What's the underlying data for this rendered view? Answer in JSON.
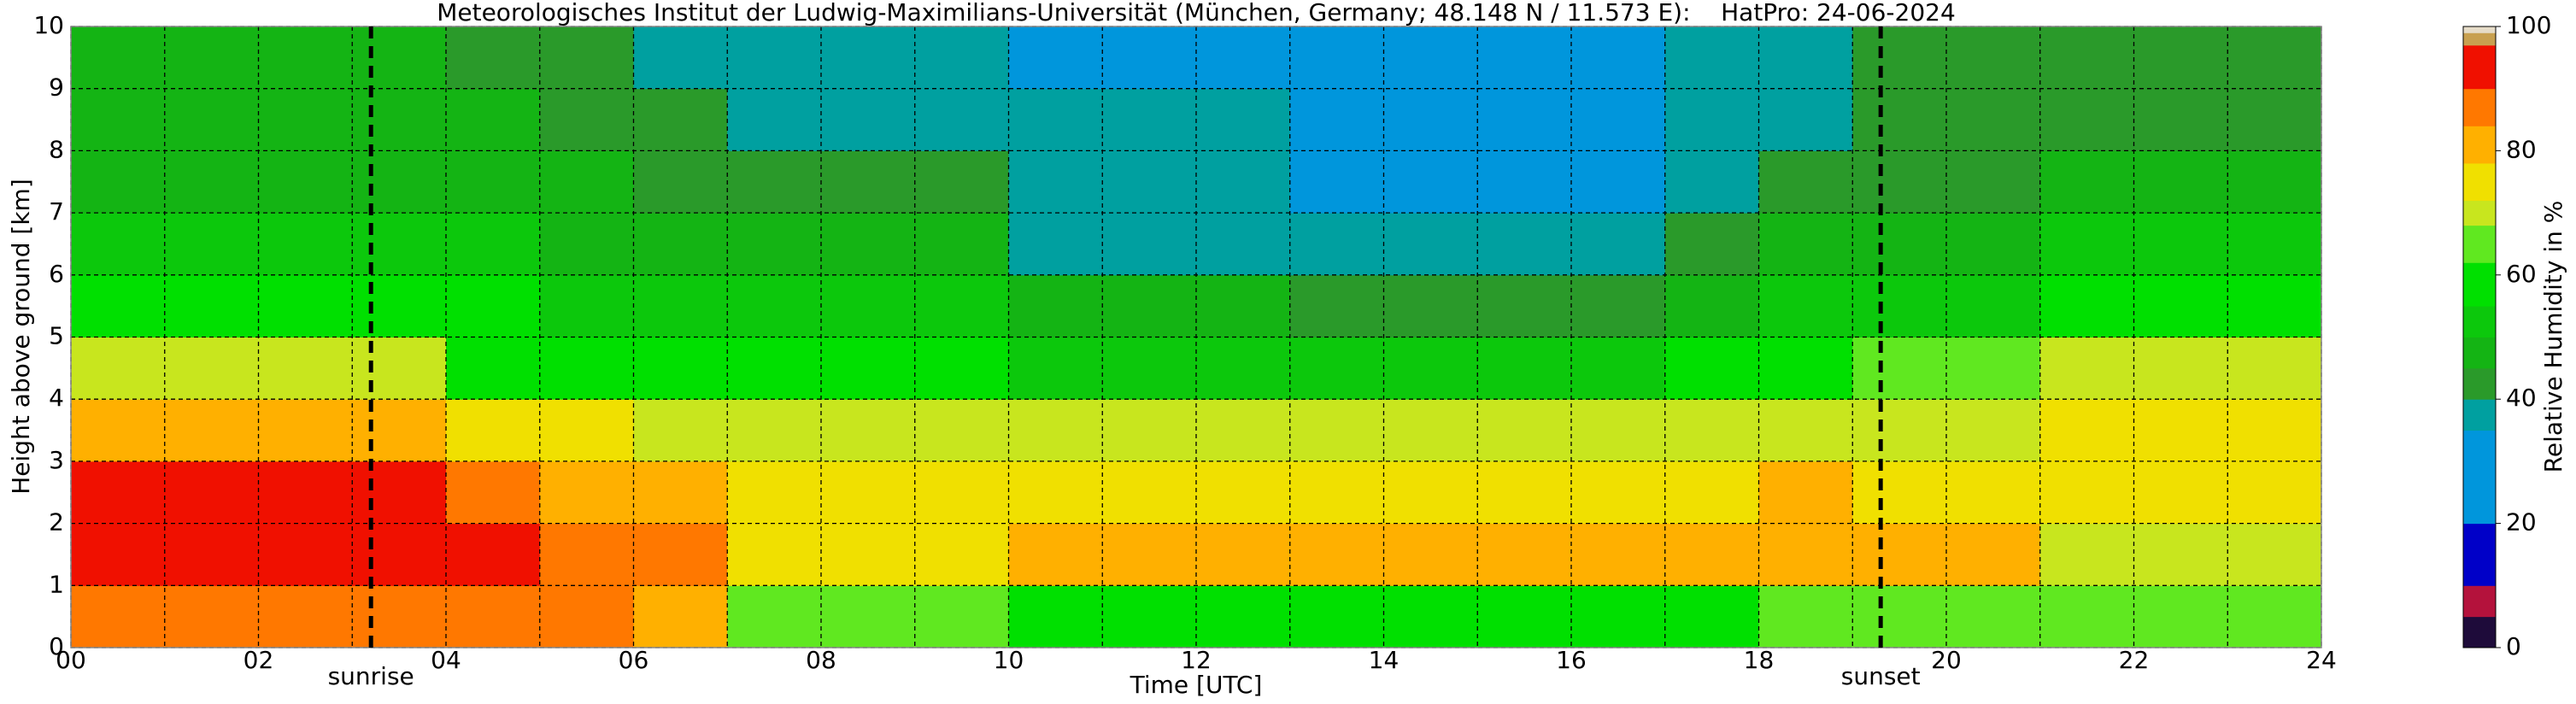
{
  "chart_data": {
    "type": "heatmap",
    "title": "Meteorologisches Institut der Ludwig-Maximilians-Universität (München, Germany; 48.148 N / 11.573 E):    HatPro: 24-06-2024",
    "xlabel": "Time [UTC]",
    "ylabel": "Height above ground [km]",
    "xlim": [
      0,
      24
    ],
    "ylim": [
      0,
      10
    ],
    "xticks": [
      {
        "value": 0,
        "label": "00"
      },
      {
        "value": 2,
        "label": "02"
      },
      {
        "value": 4,
        "label": "04"
      },
      {
        "value": 6,
        "label": "06"
      },
      {
        "value": 8,
        "label": "08"
      },
      {
        "value": 10,
        "label": "10"
      },
      {
        "value": 12,
        "label": "12"
      },
      {
        "value": 14,
        "label": "14"
      },
      {
        "value": 16,
        "label": "16"
      },
      {
        "value": 18,
        "label": "18"
      },
      {
        "value": 20,
        "label": "20"
      },
      {
        "value": 22,
        "label": "22"
      },
      {
        "value": 24,
        "label": "24"
      }
    ],
    "x_minor_grid": [
      1,
      3,
      5,
      7,
      9,
      11,
      13,
      15,
      17,
      19,
      21,
      23
    ],
    "yticks": [
      0,
      1,
      2,
      3,
      4,
      5,
      6,
      7,
      8,
      9,
      10
    ],
    "grid": true,
    "x_edges": [
      0,
      1,
      2,
      3,
      4,
      5,
      6,
      7,
      8,
      9,
      10,
      11,
      12,
      13,
      14,
      15,
      16,
      17,
      18,
      19,
      20,
      21,
      22,
      23,
      24
    ],
    "y_edges": [
      0,
      1,
      2,
      3,
      4,
      5,
      6,
      7,
      8,
      9,
      10
    ],
    "z": [
      [
        85,
        85,
        85,
        85,
        85,
        85,
        82,
        62,
        62,
        62,
        60,
        60,
        60,
        60,
        60,
        60,
        60,
        60,
        62,
        62,
        62,
        66,
        66,
        66
      ],
      [
        92,
        92,
        92,
        92,
        90,
        85,
        84,
        76,
        76,
        76,
        78,
        78,
        78,
        78,
        78,
        78,
        78,
        78,
        82,
        78,
        78,
        70,
        70,
        70
      ],
      [
        92,
        92,
        92,
        92,
        88,
        80,
        78,
        75,
        75,
        75,
        77,
        77,
        77,
        76,
        76,
        76,
        76,
        76,
        82,
        76,
        76,
        72,
        72,
        72
      ],
      [
        82,
        82,
        82,
        82,
        75,
        72,
        70,
        70,
        70,
        70,
        70,
        70,
        70,
        70,
        70,
        70,
        70,
        68,
        70,
        68,
        68,
        74,
        74,
        74
      ],
      [
        68,
        68,
        68,
        68,
        60,
        58,
        57,
        58,
        58,
        58,
        52,
        52,
        52,
        50,
        50,
        50,
        50,
        55,
        58,
        62,
        62,
        70,
        70,
        70
      ],
      [
        58,
        58,
        58,
        58,
        55,
        52,
        52,
        50,
        50,
        50,
        45,
        45,
        45,
        40,
        40,
        40,
        40,
        48,
        50,
        52,
        52,
        58,
        58,
        58
      ],
      [
        52,
        52,
        52,
        52,
        50,
        48,
        48,
        47,
        47,
        47,
        38,
        38,
        38,
        36,
        36,
        36,
        36,
        42,
        45,
        46,
        46,
        50,
        50,
        50
      ],
      [
        48,
        48,
        48,
        48,
        47,
        45,
        44,
        40,
        40,
        40,
        36,
        36,
        36,
        34,
        34,
        34,
        34,
        38,
        40,
        42,
        42,
        46,
        46,
        46
      ],
      [
        46,
        46,
        46,
        46,
        45,
        42,
        40,
        38,
        38,
        38,
        35,
        35,
        35,
        33,
        33,
        33,
        33,
        36,
        38,
        40,
        40,
        44,
        44,
        44
      ],
      [
        46,
        46,
        46,
        46,
        44,
        40,
        38,
        36,
        36,
        36,
        34,
        34,
        34,
        32,
        32,
        32,
        32,
        35,
        37,
        40,
        40,
        44,
        44,
        44
      ]
    ],
    "markers": [
      {
        "label": "sunrise",
        "x": 3.2
      },
      {
        "label": "sunset",
        "x": 19.3
      }
    ],
    "colorbar": {
      "label": "Relative Humidity in %",
      "clim": [
        0,
        100
      ],
      "ticks": [
        0,
        20,
        40,
        60,
        80,
        100
      ],
      "scale": [
        {
          "from": 0,
          "color": "#1e0b3a"
        },
        {
          "from": 5,
          "color": "#b4123c"
        },
        {
          "from": 10,
          "color": "#0000c8"
        },
        {
          "from": 20,
          "color": "#0096dc"
        },
        {
          "from": 35,
          "color": "#00a0a0"
        },
        {
          "from": 40,
          "color": "#2a9a2a"
        },
        {
          "from": 45,
          "color": "#14b414"
        },
        {
          "from": 50,
          "color": "#0cc80c"
        },
        {
          "from": 55,
          "color": "#00e000"
        },
        {
          "from": 62,
          "color": "#60e820"
        },
        {
          "from": 68,
          "color": "#c8e61e"
        },
        {
          "from": 72,
          "color": "#f0e000"
        },
        {
          "from": 78,
          "color": "#ffb000"
        },
        {
          "from": 84,
          "color": "#ff7800"
        },
        {
          "from": 90,
          "color": "#f01000"
        },
        {
          "from": 97,
          "color": "#c8a050"
        },
        {
          "from": 99,
          "color": "#e6dcc8"
        }
      ]
    }
  }
}
